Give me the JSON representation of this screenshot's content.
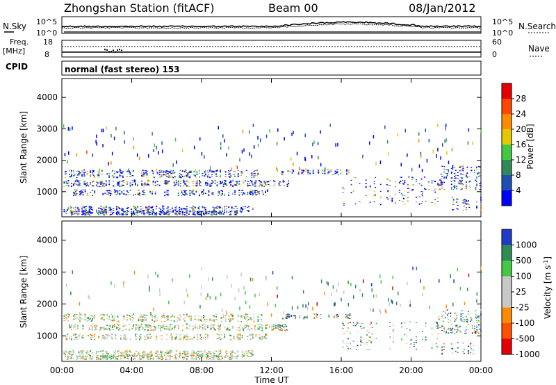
{
  "header": {
    "station": "Zhongshan Station (fitACF)",
    "beam": "Beam 00",
    "date": "08/Jan/2012"
  },
  "strip_panels": {
    "nsky": {
      "label": "N.Sky",
      "ticks": [
        "10^5",
        "10^0"
      ],
      "right_label": "N.Search",
      "right_ticks": [
        "10^5",
        "10^0"
      ]
    },
    "freq": {
      "label_top": "Freq.",
      "label_unit": "[MHz]",
      "ticks": [
        "18",
        "8"
      ],
      "right_label": "Nave",
      "right_ticks": [
        "60",
        "0"
      ]
    },
    "cpid": {
      "label": "CPID",
      "text": "normal (fast stereo) 153"
    }
  },
  "chart_data": [
    {
      "type": "heatmap",
      "name": "power",
      "ylabel": "Slant Range [km]",
      "xlabel": "",
      "y_ticks": [
        "1000",
        "2000",
        "3000",
        "4000"
      ],
      "ylim": [
        200,
        4600
      ],
      "xlim": [
        0,
        24
      ],
      "colorbar": {
        "label": "Power [dB]",
        "ticks": [
          "4",
          "8",
          "12",
          "16",
          "20",
          "24",
          "28"
        ],
        "colors": [
          "#0000ff",
          "#1e50b4",
          "#2e8b57",
          "#44c844",
          "#e6c800",
          "#ff8c00",
          "#ff4500",
          "#e60000"
        ]
      }
    },
    {
      "type": "heatmap",
      "name": "velocity",
      "ylabel": "Slant Range [km]",
      "xlabel": "Time UT",
      "y_ticks": [
        "1000",
        "2000",
        "3000",
        "4000"
      ],
      "x_ticks": [
        "00:00",
        "04:00",
        "08:00",
        "12:00",
        "16:00",
        "20:00",
        "00:00"
      ],
      "ylim": [
        200,
        4600
      ],
      "xlim": [
        0,
        24
      ],
      "colorbar": {
        "label": "Velocity [m s",
        "label_sup": "-1",
        "label_close": "]",
        "ticks": [
          "1000",
          "500",
          "100",
          "25",
          "-25",
          "-100",
          "-500",
          "-1000"
        ],
        "colors": [
          "#1e3cc8",
          "#2e8b57",
          "#44c844",
          "#c8c8c8",
          "#c8c8c8",
          "#ff8c00",
          "#ff5000",
          "#e60000"
        ]
      }
    }
  ]
}
